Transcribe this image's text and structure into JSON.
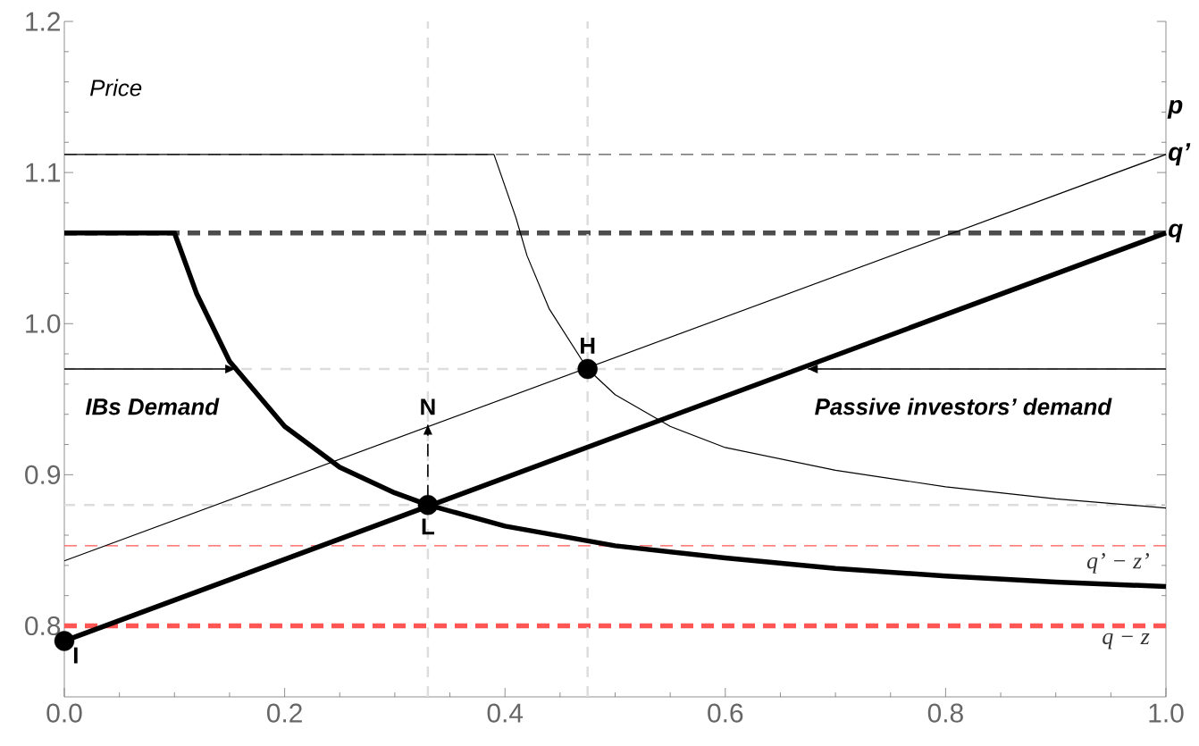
{
  "chart_data": {
    "type": "line",
    "ylabel": "Price",
    "y2label": "p",
    "xlim": [
      0,
      1
    ],
    "ylim": [
      0.753,
      1.2
    ],
    "xticks": [
      {
        "value": 0,
        "label": "0.0"
      },
      0.2,
      0.4,
      0.6,
      0.8,
      {
        "value": 1,
        "label": "1.0"
      }
    ],
    "yticks": [
      0.8,
      0.9,
      {
        "value": 1,
        "label": "1.0"
      },
      1.1,
      1.2
    ],
    "grid": false,
    "marker": "none",
    "series": [
      {
        "color": "#000000",
        "x": [
          0,
          0.1,
          0.12,
          0.15,
          0.2,
          0.25,
          0.3,
          0.33,
          0.4,
          0.5,
          0.6,
          0.7,
          0.8,
          0.9,
          1.0
        ],
        "values": [
          1.06,
          1.06,
          1.02,
          0.975,
          0.932,
          0.905,
          0.888,
          0.88,
          0.866,
          0.853,
          0.845,
          0.838,
          0.833,
          0.829,
          0.826
        ]
      },
      {
        "color": "#000000",
        "x": [
          0,
          0.39,
          0.41,
          0.42,
          0.44,
          0.475,
          0.5,
          0.55,
          0.6,
          0.7,
          0.8,
          0.9,
          1.0
        ],
        "values": [
          1.112,
          1.112,
          1.07,
          1.045,
          1.01,
          0.97,
          0.953,
          0.932,
          0.918,
          0.903,
          0.892,
          0.884,
          0.878
        ]
      },
      {
        "color": "#000000",
        "x": [
          0,
          1
        ],
        "values": [
          0.843,
          1.112
        ]
      },
      {
        "color": "#000000",
        "x": [
          0,
          1
        ],
        "values": [
          0.79,
          1.06
        ]
      },
      {
        "color": "#000000",
        "x": [
          0,
          0.155
        ],
        "values": [
          0.97,
          0.97
        ]
      },
      {
        "color": "#000000",
        "x": [
          0.675,
          1
        ],
        "values": [
          0.97,
          0.97
        ]
      },
      {
        "color": "#000000",
        "x": [
          0.33,
          0.33
        ],
        "values": [
          0.885,
          0.933
        ],
        "line_style": "dashed"
      },
      {
        "type": "scatter",
        "color": "#000000",
        "marker": "circle",
        "x": [
          0.475,
          0.33,
          0
        ],
        "values": [
          0.97,
          0.88,
          0.79
        ]
      }
    ],
    "ref_lines": [
      {
        "axis": "y",
        "value": 1.112,
        "label": "q’",
        "color": "#555555",
        "line_style": "dashed"
      },
      {
        "axis": "y",
        "value": 1.06,
        "label": "q",
        "color": "#4d4d4d",
        "line_style": "dashed"
      },
      {
        "axis": "y",
        "value": 0.97,
        "color": "#dddddd",
        "line_style": "dashed"
      },
      {
        "axis": "y",
        "value": 0.88,
        "color": "#dddddd",
        "line_style": "dashed"
      },
      {
        "axis": "y",
        "value": 0.853,
        "label": "q’ − z’",
        "color": "#ff5555",
        "line_style": "dashed"
      },
      {
        "axis": "y",
        "value": 0.8,
        "label": "q − z",
        "color": "#ff5555",
        "line_style": "dashed"
      },
      {
        "axis": "x",
        "value": 0.33,
        "color": "#dddddd",
        "line_style": "dashed"
      },
      {
        "axis": "x",
        "value": 0.475,
        "color": "#dddddd",
        "line_style": "dashed"
      }
    ],
    "annotations": [
      "IBs Demand",
      "Passive investors’ demand",
      {
        "text": "H",
        "x": 0.475,
        "y": 0.97
      },
      {
        "text": "L",
        "x": 0.33,
        "y": 0.88
      },
      {
        "text": "N",
        "x": 0.33,
        "y": 0.933
      },
      {
        "text": "I",
        "x": 0,
        "y": 0.79
      }
    ]
  }
}
